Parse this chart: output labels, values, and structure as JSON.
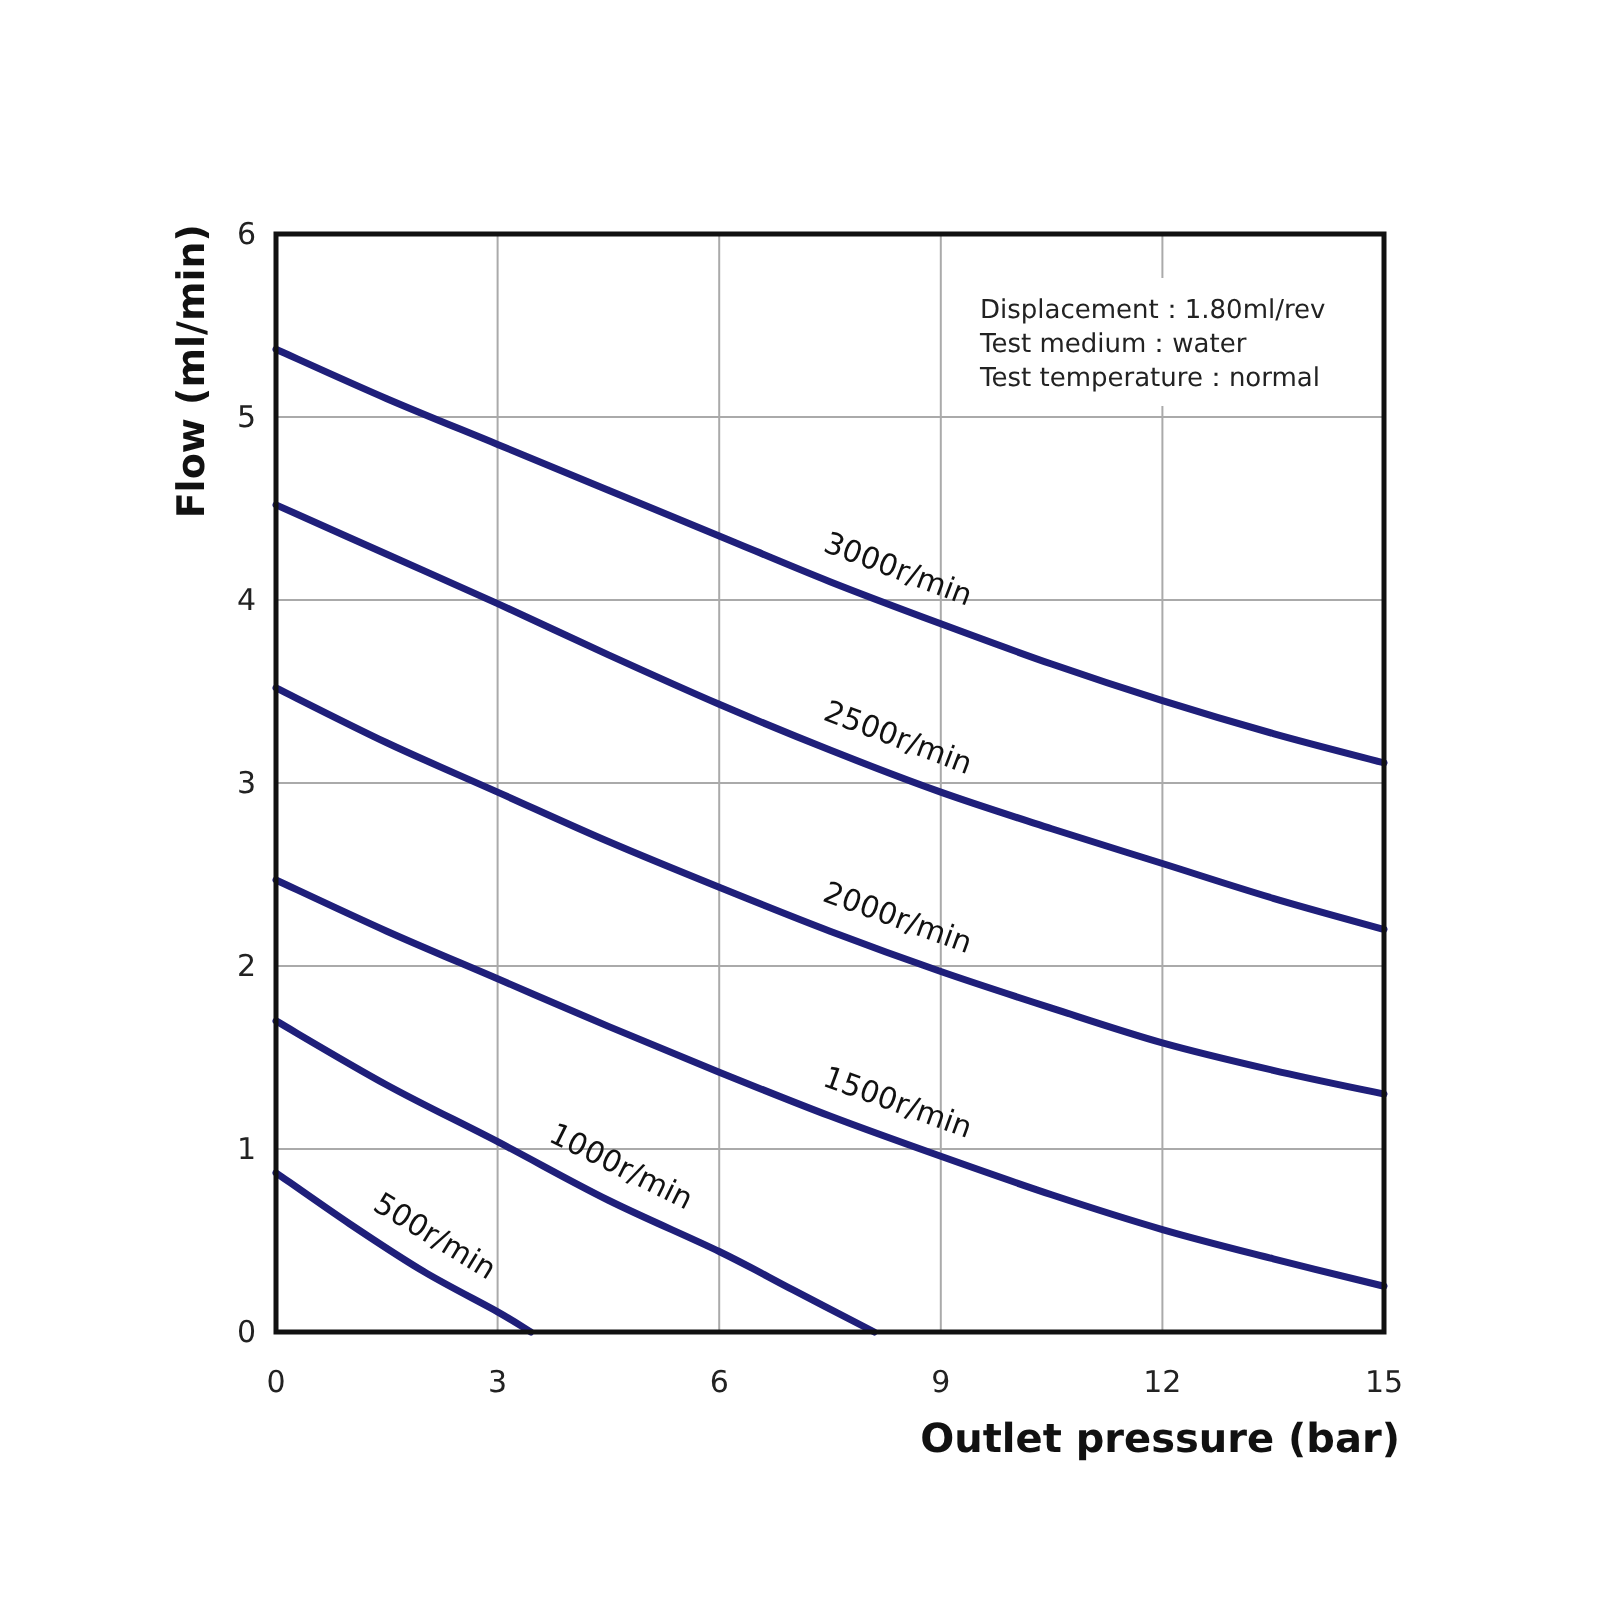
{
  "chart_data": {
    "type": "line",
    "xlabel": "Outlet pressure (bar)",
    "ylabel": "Flow (ml/min)",
    "x": [
      0,
      1.5,
      3,
      4.5,
      6,
      7.5,
      9,
      10.5,
      12,
      13.5,
      15
    ],
    "series": [
      {
        "name": "3000r/min",
        "color": "#1f1f7a",
        "values": [
          5.37,
          5.1,
          4.85,
          4.6,
          4.35,
          4.1,
          3.87,
          3.65,
          3.45,
          3.27,
          3.11
        ]
      },
      {
        "name": "2500r/min",
        "color": "#1f1f7a",
        "values": [
          4.52,
          4.25,
          3.98,
          3.7,
          3.43,
          3.18,
          2.95,
          2.75,
          2.56,
          2.37,
          2.2
        ]
      },
      {
        "name": "2000r/min",
        "color": "#1f1f7a",
        "values": [
          3.52,
          3.22,
          2.95,
          2.68,
          2.43,
          2.19,
          1.97,
          1.77,
          1.58,
          1.43,
          1.3
        ]
      },
      {
        "name": "1500r/min",
        "color": "#1f1f7a",
        "values": [
          2.47,
          2.19,
          1.93,
          1.67,
          1.42,
          1.18,
          0.96,
          0.75,
          0.56,
          0.4,
          0.25
        ]
      },
      {
        "name": "1000r/min",
        "color": "#1f1f7a",
        "x": [
          0,
          1.5,
          3,
          4.5,
          6,
          7,
          8.1
        ],
        "values": [
          1.7,
          1.35,
          1.04,
          0.72,
          0.44,
          0.23,
          0
        ]
      },
      {
        "name": "500r/min",
        "color": "#1f1f7a",
        "x": [
          0,
          1,
          2,
          3,
          3.45
        ],
        "values": [
          0.87,
          0.59,
          0.33,
          0.11,
          0
        ]
      }
    ],
    "xlim": [
      0,
      15
    ],
    "ylim": [
      0,
      6
    ],
    "xticks": [
      0,
      3,
      6,
      9,
      12,
      15
    ],
    "yticks": [
      0,
      1,
      2,
      3,
      4,
      5,
      6
    ],
    "grid": true,
    "line_style": "solid",
    "marker": "none",
    "annotations": [
      "Displacement：1.80ml/rev\nTest medium：water\nTest temperature：normal"
    ]
  }
}
